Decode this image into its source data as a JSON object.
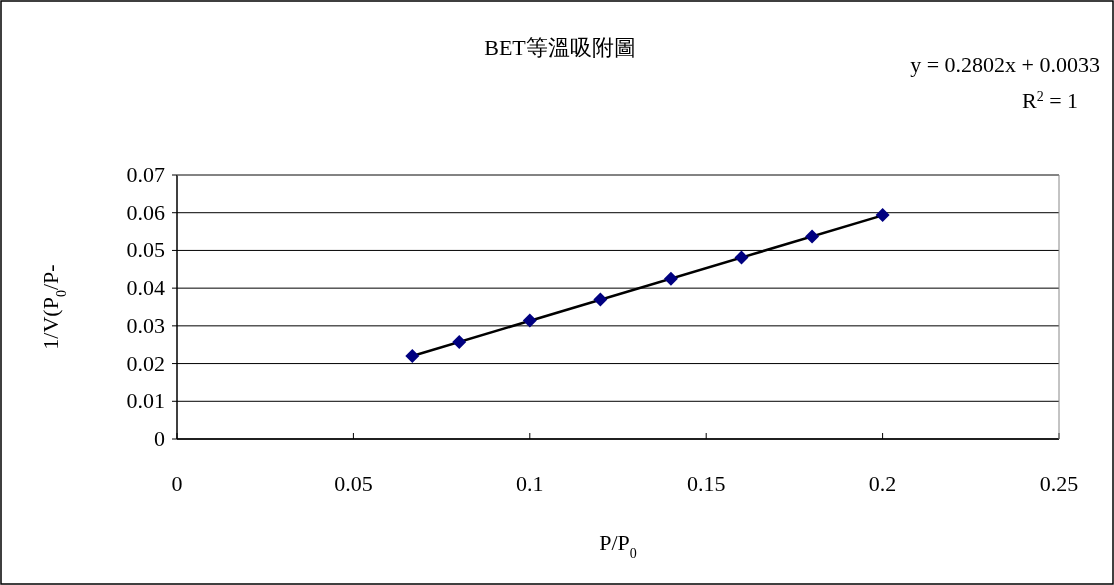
{
  "chart_data": {
    "type": "scatter",
    "title": "BET等溫吸附圖",
    "xlabel": "P/P$_{0}$",
    "ylabel": "1/V(P$_{0}$/P-",
    "annotations": [
      "y = 0.2802x + 0.0033",
      "R$^{2}$ = 1"
    ],
    "x": [
      0.0667,
      0.08,
      0.1,
      0.12,
      0.14,
      0.16,
      0.18,
      0.2
    ],
    "series": [
      {
        "color": "#000080",
        "marker": "diamond",
        "values": [
          0.022,
          0.0257,
          0.0314,
          0.037,
          0.0425,
          0.0481,
          0.0537,
          0.0594
        ]
      },
      {
        "type": "line",
        "marker": "none",
        "color": "#000000",
        "x": [
          0.0667,
          0.2
        ],
        "values": [
          0.022,
          0.0593
        ]
      }
    ],
    "xlim": [
      0,
      0.25
    ],
    "ylim": [
      0,
      0.07
    ],
    "xticks": [
      0,
      0.05,
      0.1,
      0.15,
      0.2,
      0.25
    ],
    "yticks": [
      0,
      0.01,
      0.02,
      0.03,
      0.04,
      0.05,
      0.06,
      0.07
    ],
    "grid": "y"
  }
}
